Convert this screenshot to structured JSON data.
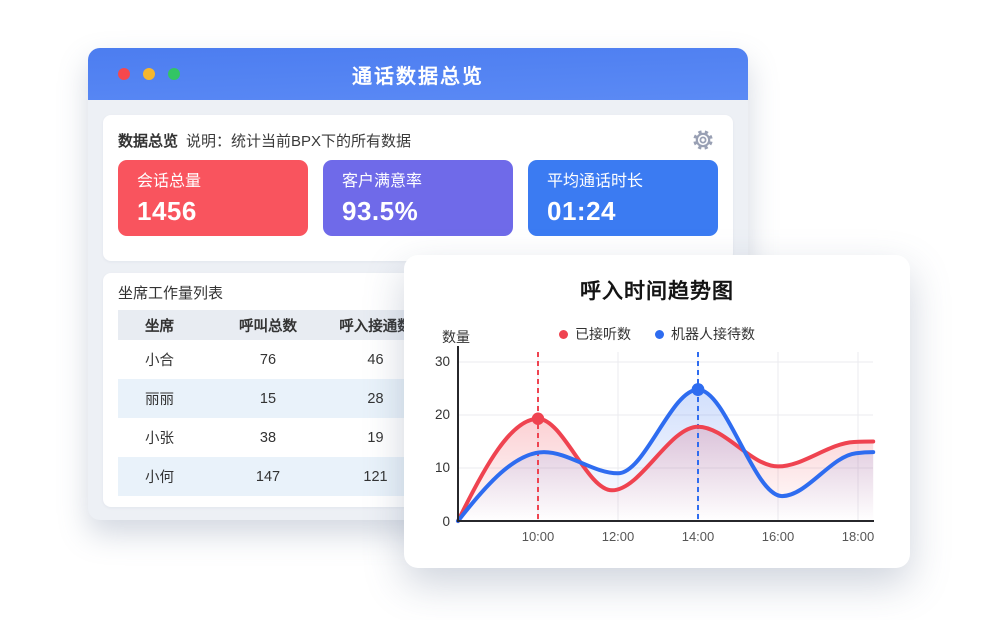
{
  "window": {
    "title": "通话数据总览",
    "traffic_lights": {
      "close": "#f5484d",
      "minimize": "#f6b62d",
      "zoom": "#33c564"
    },
    "overview_section": {
      "title": "数据总览",
      "note": "说明：统计当前BPX下的所有数据",
      "stats": [
        {
          "label": "会话总量",
          "value": "1456",
          "bg": "#f9545e"
        },
        {
          "label": "客户满意率",
          "value": "93.5%",
          "bg": "#6f6ae9"
        },
        {
          "label": "平均通话时长",
          "value": "01:24",
          "bg": "#3b7bf2"
        }
      ]
    },
    "worklist_section": {
      "title": "坐席工作量列表",
      "columns": [
        "坐席",
        "呼叫总数",
        "呼入接通数"
      ],
      "rows": [
        [
          "小合",
          "76",
          "46"
        ],
        [
          "丽丽",
          "15",
          "28"
        ],
        [
          "小张",
          "38",
          "19"
        ],
        [
          "小何",
          "147",
          "121"
        ]
      ]
    }
  },
  "chart_data": {
    "type": "line",
    "title": "呼入时间趋势图",
    "ylabel": "数量",
    "x_ticks": [
      "10:00",
      "12:00",
      "14:00",
      "16:00",
      "18:00"
    ],
    "x_tick_hours": [
      10,
      12,
      14,
      16,
      18
    ],
    "y_ticks": [
      "30",
      "20",
      "10",
      "0"
    ],
    "ylim": [
      0,
      30
    ],
    "x_range_hours": [
      8,
      18.4
    ],
    "grid": true,
    "legend_position": "top",
    "series": [
      {
        "name": "已接听数",
        "color": "#ef4350",
        "points": [
          [
            8,
            0
          ],
          [
            10,
            19.3
          ],
          [
            11.85,
            5.8
          ],
          [
            14,
            17.8
          ],
          [
            16.0,
            10.3
          ],
          [
            17.9,
            14.9
          ],
          [
            18.38,
            15.0
          ]
        ],
        "marker": {
          "hour": 10,
          "value": 19.3,
          "time": "10:00"
        }
      },
      {
        "name": "机器人接待数",
        "color": "#2e6cf0",
        "points": [
          [
            8,
            0
          ],
          [
            10.15,
            13
          ],
          [
            12,
            9
          ],
          [
            14,
            24.8
          ],
          [
            16.1,
            4.7
          ],
          [
            17.95,
            12.8
          ],
          [
            18.38,
            13.0
          ]
        ],
        "marker": {
          "hour": 14,
          "value": 24.8,
          "time": "14:00"
        }
      }
    ]
  }
}
